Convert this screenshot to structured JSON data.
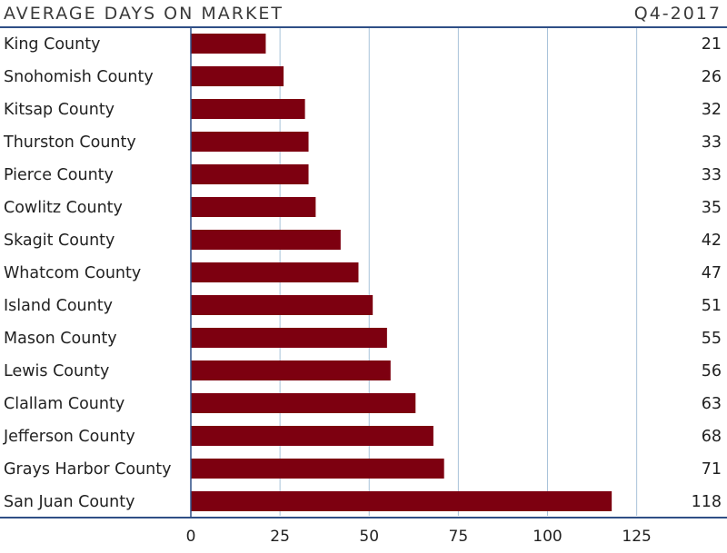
{
  "header": {
    "title": "AVERAGE DAYS ON MARKET",
    "period": "Q4-2017"
  },
  "colors": {
    "bar": "#7d0010",
    "rule": "#2f4f86",
    "grid": "#a9c3da",
    "axis": "#2f4f86"
  },
  "chart_data": {
    "type": "bar",
    "orientation": "horizontal",
    "title": "AVERAGE DAYS ON MARKET",
    "subtitle": "Q4-2017",
    "xlabel": "",
    "ylabel": "",
    "categories": [
      "King County",
      "Snohomish County",
      "Kitsap County",
      "Thurston County",
      "Pierce County",
      "Cowlitz County",
      "Skagit County",
      "Whatcom County",
      "Island County",
      "Mason County",
      "Lewis County",
      "Clallam County",
      "Jefferson County",
      "Grays Harbor County",
      "San Juan County"
    ],
    "values": [
      21,
      26,
      32,
      33,
      33,
      35,
      42,
      47,
      51,
      55,
      56,
      63,
      68,
      71,
      118
    ],
    "data_labels": [
      "21",
      "26",
      "32",
      "33",
      "33",
      "35",
      "42",
      "47",
      "51",
      "55",
      "56",
      "63",
      "68",
      "71",
      "118"
    ],
    "xlim": [
      0,
      150
    ],
    "xticks": [
      0,
      25,
      50,
      75,
      100,
      125
    ],
    "xtick_labels": [
      "0",
      "25",
      "50",
      "75",
      "100",
      "125"
    ],
    "grid": true,
    "legend": "none"
  }
}
